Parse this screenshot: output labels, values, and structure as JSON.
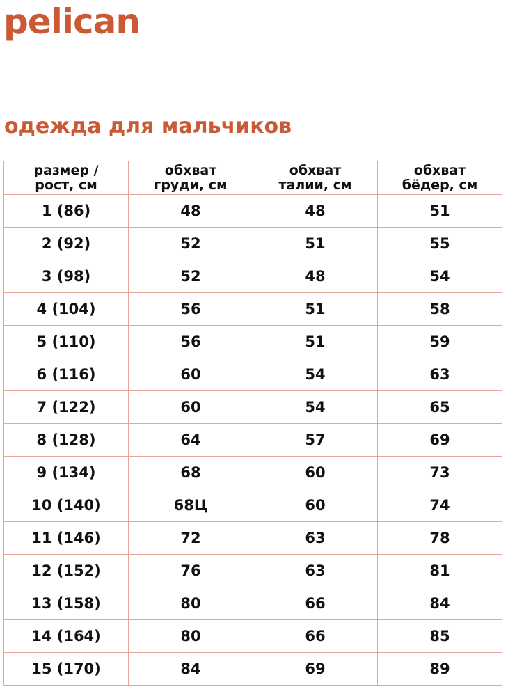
{
  "brand": {
    "logo_text": "pelican",
    "accent_color": "#c95a35"
  },
  "title": "одежда для мальчиков",
  "table": {
    "headers": [
      [
        "размер /",
        "рост, см"
      ],
      [
        "обхват",
        "груди, см"
      ],
      [
        "обхват",
        "талии, см"
      ],
      [
        "обхват",
        "бёдер, см"
      ]
    ],
    "rows": [
      [
        "1 (86)",
        "48",
        "48",
        "51"
      ],
      [
        "2 (92)",
        "52",
        "51",
        "55"
      ],
      [
        "3 (98)",
        "52",
        "48",
        "54"
      ],
      [
        "4 (104)",
        "56",
        "51",
        "58"
      ],
      [
        "5 (110)",
        "56",
        "51",
        "59"
      ],
      [
        "6 (116)",
        "60",
        "54",
        "63"
      ],
      [
        "7 (122)",
        "60",
        "54",
        "65"
      ],
      [
        "8 (128)",
        "64",
        "57",
        "69"
      ],
      [
        "9 (134)",
        "68",
        "60",
        "73"
      ],
      [
        "10 (140)",
        "68Ц",
        "60",
        "74"
      ],
      [
        "11 (146)",
        "72",
        "63",
        "78"
      ],
      [
        "12 (152)",
        "76",
        "63",
        "81"
      ],
      [
        "13 (158)",
        "80",
        "66",
        "84"
      ],
      [
        "14 (164)",
        "80",
        "66",
        "85"
      ],
      [
        "15 (170)",
        "84",
        "69",
        "89"
      ]
    ]
  }
}
